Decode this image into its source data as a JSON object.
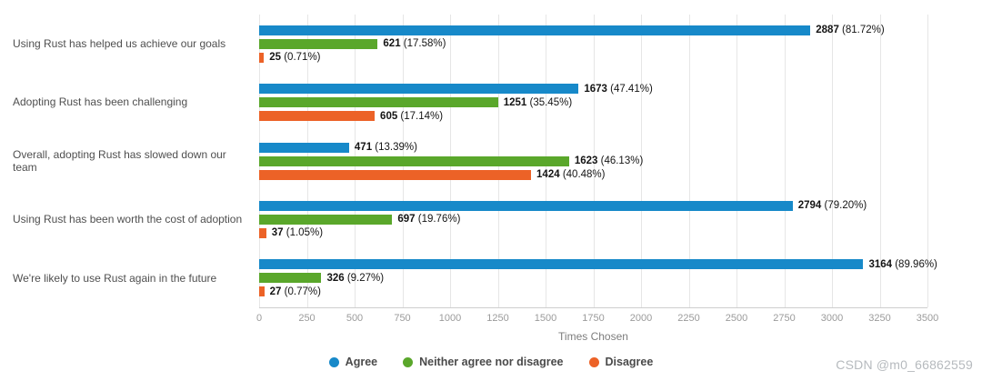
{
  "watermark": "CSDN @m0_66862559",
  "chart_data": {
    "type": "bar",
    "orientation": "horizontal",
    "title": "",
    "xlabel": "Times Chosen",
    "ylabel": "",
    "xlim": [
      0,
      3500
    ],
    "xticks": [
      0,
      250,
      500,
      750,
      1000,
      1250,
      1500,
      1750,
      2000,
      2250,
      2500,
      2750,
      3000,
      3250,
      3500
    ],
    "grid": true,
    "legend_position": "bottom",
    "categories": [
      "Using Rust has helped us achieve our goals",
      "Adopting Rust has been challenging",
      "Overall, adopting Rust has slowed down our team",
      "Using Rust has been worth the cost of adoption",
      "We're likely to use Rust again in the future"
    ],
    "series": [
      {
        "key": "agree",
        "name": "Agree",
        "color": "#1789c9",
        "values": [
          2887,
          1673,
          471,
          2794,
          3164
        ],
        "percents": [
          "81.72%",
          "47.41%",
          "13.39%",
          "79.20%",
          "89.96%"
        ]
      },
      {
        "key": "neither",
        "name": "Neither agree nor disagree",
        "color": "#5aa72b",
        "values": [
          621,
          1251,
          1623,
          697,
          326
        ],
        "percents": [
          "17.58%",
          "35.45%",
          "46.13%",
          "19.76%",
          "9.27%"
        ]
      },
      {
        "key": "disagree",
        "name": "Disagree",
        "color": "#ec6227",
        "values": [
          25,
          605,
          1424,
          37,
          27
        ],
        "percents": [
          "0.71%",
          "17.14%",
          "40.48%",
          "1.05%",
          "0.77%"
        ]
      }
    ]
  }
}
